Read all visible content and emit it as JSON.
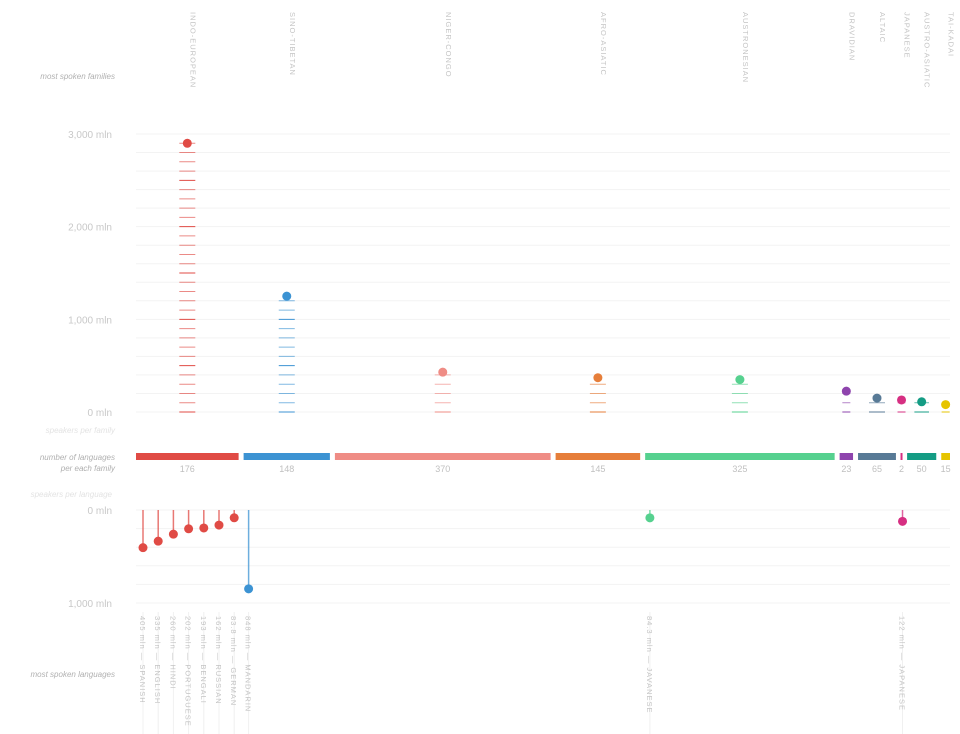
{
  "side_labels": {
    "families": "most spoken families",
    "speakers_family": "speakers per family",
    "num_languages": "number of languages",
    "num_languages_2": "per each family",
    "speakers_language": "speakers per language",
    "languages": "most spoken languages"
  },
  "chart_data": [
    {
      "type": "scatter",
      "title": "speakers per family",
      "unit": "mln",
      "yaxis": {
        "ticks": [
          0,
          1000,
          2000,
          3000
        ],
        "tick_labels": [
          "0 mln",
          "1,000 mln",
          "2,000 mln",
          "3,000 mln"
        ],
        "ylim": [
          0,
          3000
        ],
        "grid": true
      },
      "series": [
        {
          "name": "INDO-EUROPEAN",
          "speakers": 2900,
          "languages": 176,
          "color": "#e04b45"
        },
        {
          "name": "SINO-TIBETAN",
          "speakers": 1250,
          "languages": 148,
          "color": "#3c93d3"
        },
        {
          "name": "NIGER-CONGO",
          "speakers": 430,
          "languages": 370,
          "color": "#ef8c85"
        },
        {
          "name": "AFRO-ASIATIC",
          "speakers": 370,
          "languages": 145,
          "color": "#e67e3a"
        },
        {
          "name": "AUSTRONESIAN",
          "speakers": 350,
          "languages": 325,
          "color": "#56d18f"
        },
        {
          "name": "DRAVIDIAN",
          "speakers": 225,
          "languages": 23,
          "color": "#8e44ad"
        },
        {
          "name": "ALTAIC",
          "speakers": 150,
          "languages": 65,
          "color": "#587a96"
        },
        {
          "name": "JAPANESE",
          "speakers": 130,
          "languages": 2,
          "color": "#d62f82"
        },
        {
          "name": "AUSTRO-ASIATIC",
          "speakers": 110,
          "languages": 50,
          "color": "#149c84"
        },
        {
          "name": "TAI-KADAI",
          "speakers": 80,
          "languages": 15,
          "color": "#e6c400"
        }
      ]
    },
    {
      "type": "scatter",
      "title": "speakers per language",
      "unit": "mln",
      "yaxis": {
        "ticks": [
          0,
          1000
        ],
        "tick_labels": [
          "0 mln",
          "1,000 mln"
        ],
        "ylim": [
          0,
          1000
        ],
        "grid": true
      },
      "languages": [
        {
          "label": "405 mln — SPANISH",
          "speakers": 405,
          "family": "INDO-EUROPEAN"
        },
        {
          "label": "335 mln — ENGLISH",
          "speakers": 335,
          "family": "INDO-EUROPEAN"
        },
        {
          "label": "260 mln — HINDI",
          "speakers": 260,
          "family": "INDO-EUROPEAN"
        },
        {
          "label": "202 mln — PORTUGUESE",
          "speakers": 202,
          "family": "INDO-EUROPEAN"
        },
        {
          "label": "193 mln — BENGALI",
          "speakers": 193,
          "family": "INDO-EUROPEAN"
        },
        {
          "label": "162 mln — RUSSIAN",
          "speakers": 162,
          "family": "INDO-EUROPEAN"
        },
        {
          "label": "83.8 mln — GERMAN",
          "speakers": 83.8,
          "family": "INDO-EUROPEAN"
        },
        {
          "label": "848 mln — MANDARIN",
          "speakers": 848,
          "family": "SINO-TIBETAN"
        },
        {
          "label": "84.3 mln — JAVANESE",
          "speakers": 84.3,
          "family": "AUSTRONESIAN"
        },
        {
          "label": "122 mln — JAPANESE",
          "speakers": 122,
          "family": "JAPANESE"
        }
      ]
    }
  ]
}
